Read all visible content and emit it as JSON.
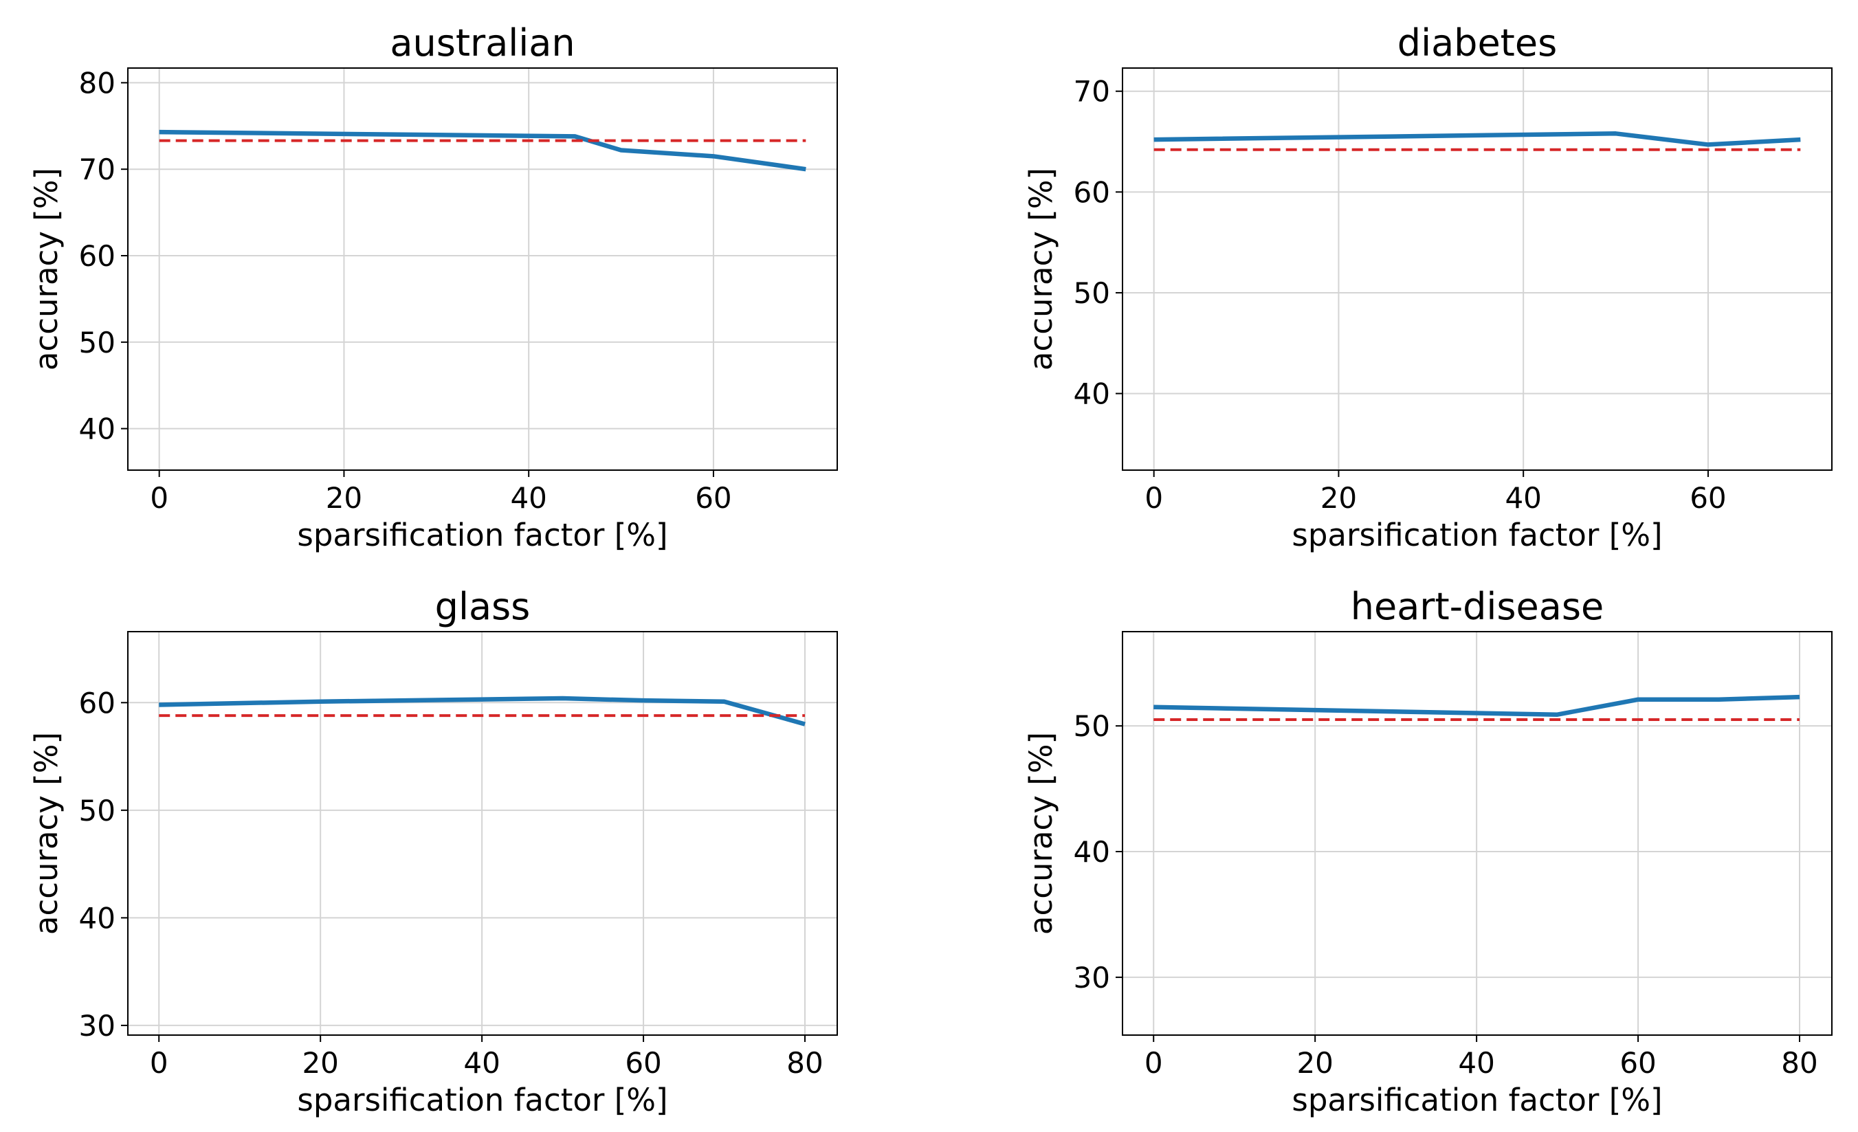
{
  "chart_data": [
    {
      "type": "line",
      "title": "australian",
      "xlabel": "sparsification factor [%]",
      "ylabel": "accuracy [%]",
      "xlim": [
        -3.4,
        73.4
      ],
      "xticks": [
        0,
        20,
        40,
        60
      ],
      "ylim": [
        35.2,
        81.7
      ],
      "yticks": [
        40,
        50,
        60,
        70,
        80
      ],
      "grid": true,
      "series": [
        {
          "color": "#1f77b4",
          "dash": false,
          "x": [
            0,
            45,
            50,
            60,
            70
          ],
          "values": [
            74.3,
            73.8,
            72.2,
            71.5,
            70.0
          ]
        },
        {
          "color": "#d62728",
          "dash": true,
          "x": [
            0,
            70
          ],
          "values": [
            73.3,
            73.3
          ]
        }
      ]
    },
    {
      "type": "line",
      "title": "diabetes",
      "xlabel": "sparsification factor [%]",
      "ylabel": "accuracy [%]",
      "xlim": [
        -3.4,
        73.4
      ],
      "xticks": [
        0,
        20,
        40,
        60
      ],
      "ylim": [
        32.4,
        72.3
      ],
      "yticks": [
        40,
        50,
        60,
        70
      ],
      "grid": true,
      "series": [
        {
          "color": "#1f77b4",
          "dash": false,
          "x": [
            0,
            50,
            60,
            70
          ],
          "values": [
            65.2,
            65.8,
            64.7,
            65.2
          ]
        },
        {
          "color": "#d62728",
          "dash": true,
          "x": [
            0,
            70
          ],
          "values": [
            64.2,
            64.2
          ]
        }
      ]
    },
    {
      "type": "line",
      "title": "glass",
      "xlabel": "sparsification factor [%]",
      "ylabel": "accuracy [%]",
      "xlim": [
        -3.85,
        84
      ],
      "xticks": [
        0,
        20,
        40,
        60,
        80
      ],
      "ylim": [
        29.1,
        66.6
      ],
      "yticks": [
        30,
        40,
        50,
        60
      ],
      "grid": true,
      "series": [
        {
          "color": "#1f77b4",
          "dash": false,
          "x": [
            0,
            20,
            40,
            50,
            60,
            70,
            80
          ],
          "values": [
            59.8,
            60.1,
            60.3,
            60.4,
            60.2,
            60.1,
            58.0
          ]
        },
        {
          "color": "#d62728",
          "dash": true,
          "x": [
            0,
            80
          ],
          "values": [
            58.8,
            58.8
          ]
        }
      ]
    },
    {
      "type": "line",
      "title": "heart-disease",
      "xlabel": "sparsification factor [%]",
      "ylabel": "accuracy [%]",
      "xlim": [
        -3.85,
        84
      ],
      "xticks": [
        0,
        20,
        40,
        60,
        80
      ],
      "ylim": [
        25.4,
        57.5
      ],
      "yticks": [
        30,
        40,
        50
      ],
      "grid": true,
      "series": [
        {
          "color": "#1f77b4",
          "dash": false,
          "x": [
            0,
            50,
            60,
            70,
            80
          ],
          "values": [
            51.5,
            50.9,
            52.1,
            52.1,
            52.3
          ]
        },
        {
          "color": "#d62728",
          "dash": true,
          "x": [
            0,
            80
          ],
          "values": [
            50.5,
            50.5
          ]
        }
      ]
    }
  ]
}
